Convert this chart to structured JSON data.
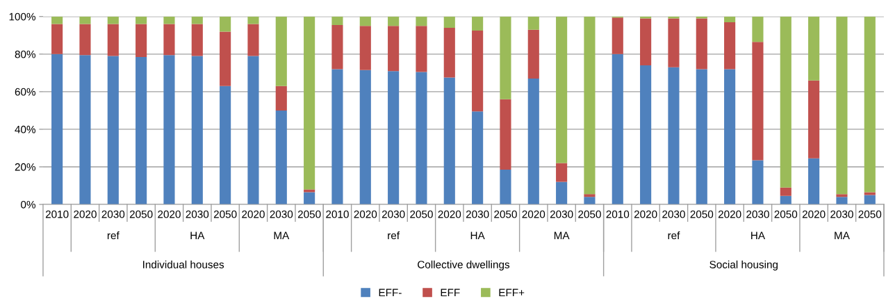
{
  "chart_data": {
    "type": "bar",
    "stacked": true,
    "categories": [
      "2010",
      "2020",
      "2030",
      "2050",
      "2020",
      "2030",
      "2050",
      "2020",
      "2030",
      "2050",
      "2010",
      "2020",
      "2030",
      "2050",
      "2020",
      "2030",
      "2050",
      "2020",
      "2030",
      "2050",
      "2010",
      "2020",
      "2030",
      "2050",
      "2020",
      "2030",
      "2050",
      "2020",
      "2030",
      "2050"
    ],
    "series": [
      {
        "name": "EFF-",
        "color": "#4f81bd",
        "values": [
          80,
          79.5,
          79,
          78.5,
          79.5,
          79,
          63,
          79,
          50,
          6.5,
          72,
          71.5,
          71,
          70.5,
          67.5,
          49.5,
          18.5,
          67,
          12,
          4,
          80,
          74,
          73,
          72,
          72,
          23.5,
          4.5,
          24.5,
          4,
          5
        ]
      },
      {
        "name": "EFF",
        "color": "#c0504d",
        "values": [
          16,
          16.5,
          17,
          17.5,
          16.5,
          17,
          29,
          17,
          13,
          1.5,
          23.5,
          23.5,
          24,
          24.5,
          26.5,
          43,
          37.5,
          26,
          10,
          1.5,
          19.5,
          25,
          26,
          27,
          25,
          63,
          4.5,
          41.5,
          1.5,
          1.5
        ]
      },
      {
        "name": "EFF+",
        "color": "#9bbb59",
        "values": [
          4,
          4,
          4,
          4,
          4,
          4,
          8,
          4,
          37,
          92,
          4.5,
          5,
          5,
          5,
          6,
          7.5,
          44,
          7,
          78,
          94.5,
          0.5,
          1,
          1,
          1,
          3,
          13.5,
          91,
          34,
          94.5,
          93.5
        ]
      }
    ],
    "ylim": [
      0,
      100
    ],
    "yticks": [
      {
        "value": 0,
        "label": "0%"
      },
      {
        "value": 20,
        "label": "20%"
      },
      {
        "value": 40,
        "label": "40%"
      },
      {
        "value": 60,
        "label": "60%"
      },
      {
        "value": 80,
        "label": "80%"
      },
      {
        "value": 100,
        "label": "100%"
      }
    ],
    "grid": "y",
    "legend": "bottom",
    "annotations": [
      "ref",
      "HA",
      "MA",
      "Individual houses",
      "ref",
      "HA",
      "MA",
      "Collective dwellings",
      "ref",
      "HA",
      "MA",
      "Social housing"
    ]
  }
}
